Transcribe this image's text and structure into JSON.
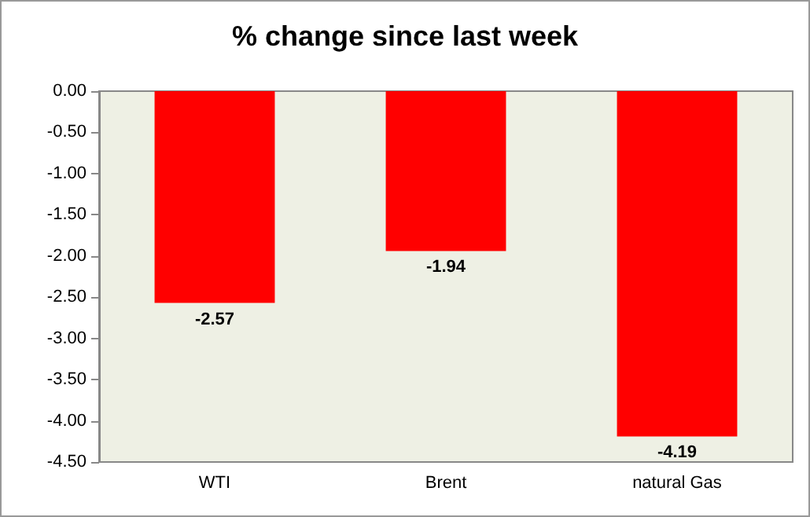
{
  "chart_data": {
    "type": "bar",
    "title": "% change since last week",
    "categories": [
      "WTI",
      "Brent",
      "natural Gas"
    ],
    "values": [
      -2.57,
      -1.94,
      -4.19
    ],
    "color": "#ff0000",
    "ylim": [
      -4.5,
      0
    ],
    "yticks": [
      {
        "value": 0,
        "label": "0.00"
      },
      {
        "value": -0.5,
        "label": "-0.50"
      },
      {
        "value": -1,
        "label": "-1.00"
      },
      {
        "value": -1.5,
        "label": "-1.50"
      },
      {
        "value": -2,
        "label": "-2.00"
      },
      {
        "value": -2.5,
        "label": "-2.50"
      },
      {
        "value": -3,
        "label": "-3.00"
      },
      {
        "value": -3.5,
        "label": "-3.50"
      },
      {
        "value": -4,
        "label": "-4.00"
      },
      {
        "value": -4.5,
        "label": "-4.50"
      }
    ],
    "grid": false,
    "data_labels": true
  }
}
